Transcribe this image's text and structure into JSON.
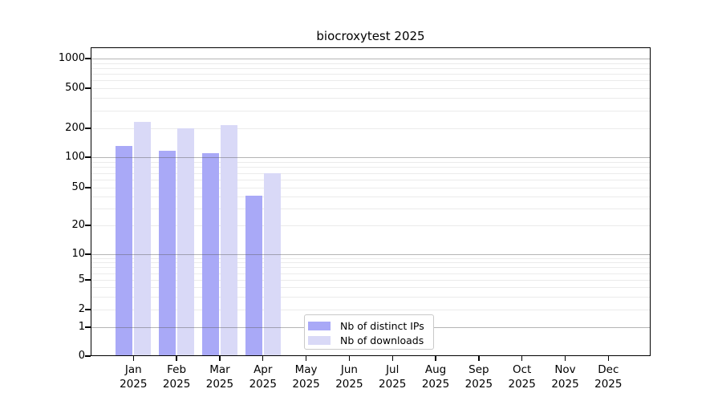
{
  "chart_data": {
    "type": "bar",
    "title": "biocroxytest 2025",
    "categories": [
      "Jan",
      "Feb",
      "Mar",
      "Apr",
      "May",
      "Jun",
      "Jul",
      "Aug",
      "Sep",
      "Oct",
      "Nov",
      "Dec"
    ],
    "category_year": "2025",
    "series": [
      {
        "name": "Nb of distinct IPs",
        "color": "#a9a9f7",
        "values": [
          130,
          117,
          111,
          41,
          0,
          0,
          0,
          0,
          0,
          0,
          0,
          0
        ]
      },
      {
        "name": "Nb of downloads",
        "color": "#d9d9f7",
        "values": [
          230,
          200,
          217,
          70,
          0,
          0,
          0,
          0,
          0,
          0,
          0,
          0
        ]
      }
    ],
    "y_ticks": [
      0,
      1,
      2,
      5,
      10,
      20,
      50,
      100,
      200,
      500,
      1000
    ],
    "ylim": [
      0,
      1300
    ],
    "xlabel": "",
    "ylabel": "",
    "scale": "log-like (log above 1, linear 0-1)",
    "grid": {
      "horizontal": true,
      "major_at": [
        1,
        10,
        100,
        1000
      ]
    },
    "legend": {
      "position": "inside-bottom-center"
    }
  },
  "colors": {
    "background": "#ffffff",
    "axis": "#000000",
    "major_grid": "#b3b3b3",
    "minor_grid": "#ebebeb",
    "legend_border": "#c9c9c9",
    "ips_bar": "#a9a9f7",
    "downloads_bar": "#d9d9f7"
  }
}
